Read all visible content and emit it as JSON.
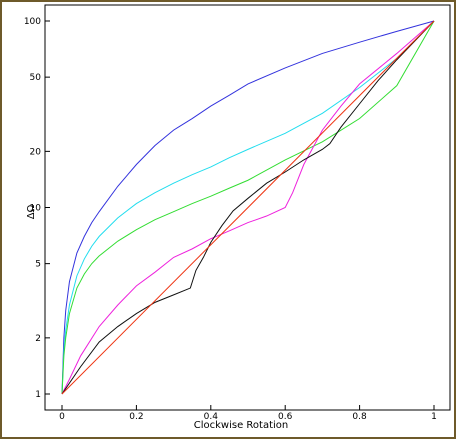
{
  "chart_data": {
    "type": "line",
    "title": "",
    "xlabel": "Clockwise Rotation",
    "ylabel": "ΔΩ",
    "y_scale": "log",
    "xlim": [
      0,
      1
    ],
    "ylim": [
      1,
      100
    ],
    "x_ticks": [
      "0",
      "0.2",
      "0.4",
      "0.6",
      "0.8",
      "1"
    ],
    "x_tick_values": [
      0,
      0.2,
      0.4,
      0.6,
      0.8,
      1
    ],
    "y_ticks": [
      "1",
      "2",
      "5",
      "10",
      "20",
      "50",
      "100"
    ],
    "y_tick_values": [
      1,
      2,
      5,
      10,
      20,
      50,
      100
    ],
    "grid": false,
    "legend": "none",
    "series": [
      {
        "color": "#3333dd",
        "points": [
          [
            0,
            1
          ],
          [
            0.005,
            2.0
          ],
          [
            0.01,
            2.8
          ],
          [
            0.02,
            4.0
          ],
          [
            0.04,
            5.7
          ],
          [
            0.06,
            7.0
          ],
          [
            0.08,
            8.3
          ],
          [
            0.1,
            9.5
          ],
          [
            0.15,
            13
          ],
          [
            0.2,
            17
          ],
          [
            0.25,
            21.5
          ],
          [
            0.3,
            26
          ],
          [
            0.35,
            30
          ],
          [
            0.4,
            35
          ],
          [
            0.45,
            40
          ],
          [
            0.5,
            46
          ],
          [
            0.6,
            56
          ],
          [
            0.7,
            67
          ],
          [
            0.8,
            77
          ],
          [
            0.9,
            88
          ],
          [
            1.0,
            100
          ]
        ]
      },
      {
        "color": "#22ddee",
        "points": [
          [
            0,
            1
          ],
          [
            0.005,
            1.7
          ],
          [
            0.01,
            2.2
          ],
          [
            0.02,
            3.0
          ],
          [
            0.04,
            4.3
          ],
          [
            0.06,
            5.3
          ],
          [
            0.08,
            6.2
          ],
          [
            0.1,
            7.0
          ],
          [
            0.15,
            8.8
          ],
          [
            0.2,
            10.5
          ],
          [
            0.25,
            12
          ],
          [
            0.3,
            13.5
          ],
          [
            0.35,
            15
          ],
          [
            0.4,
            16.5
          ],
          [
            0.45,
            18.5
          ],
          [
            0.5,
            20.5
          ],
          [
            0.6,
            25
          ],
          [
            0.7,
            32
          ],
          [
            0.8,
            44
          ],
          [
            0.9,
            63
          ],
          [
            1.0,
            100
          ]
        ]
      },
      {
        "color": "#33dd33",
        "points": [
          [
            0,
            1
          ],
          [
            0.005,
            1.6
          ],
          [
            0.01,
            2.0
          ],
          [
            0.02,
            2.7
          ],
          [
            0.04,
            3.7
          ],
          [
            0.06,
            4.4
          ],
          [
            0.08,
            5.0
          ],
          [
            0.1,
            5.5
          ],
          [
            0.15,
            6.6
          ],
          [
            0.2,
            7.6
          ],
          [
            0.25,
            8.6
          ],
          [
            0.3,
            9.5
          ],
          [
            0.35,
            10.5
          ],
          [
            0.4,
            11.5
          ],
          [
            0.45,
            12.7
          ],
          [
            0.5,
            14
          ],
          [
            0.6,
            18
          ],
          [
            0.7,
            22.5
          ],
          [
            0.8,
            30
          ],
          [
            0.9,
            45
          ],
          [
            1.0,
            100
          ]
        ]
      },
      {
        "color": "#ee22dd",
        "points": [
          [
            0,
            1
          ],
          [
            0.02,
            1.2
          ],
          [
            0.05,
            1.6
          ],
          [
            0.1,
            2.3
          ],
          [
            0.15,
            3.0
          ],
          [
            0.2,
            3.8
          ],
          [
            0.25,
            4.5
          ],
          [
            0.3,
            5.4
          ],
          [
            0.35,
            6.0
          ],
          [
            0.4,
            6.8
          ],
          [
            0.45,
            7.5
          ],
          [
            0.5,
            8.3
          ],
          [
            0.55,
            9.0
          ],
          [
            0.6,
            10
          ],
          [
            0.62,
            12
          ],
          [
            0.65,
            17
          ],
          [
            0.7,
            26
          ],
          [
            0.75,
            35
          ],
          [
            0.8,
            46
          ],
          [
            0.9,
            67
          ],
          [
            1.0,
            100
          ]
        ]
      },
      {
        "color": "#111111",
        "points": [
          [
            0,
            1
          ],
          [
            0.05,
            1.4
          ],
          [
            0.1,
            1.9
          ],
          [
            0.15,
            2.3
          ],
          [
            0.2,
            2.7
          ],
          [
            0.25,
            3.1
          ],
          [
            0.3,
            3.4
          ],
          [
            0.345,
            3.7
          ],
          [
            0.36,
            4.6
          ],
          [
            0.38,
            5.4
          ],
          [
            0.4,
            6.5
          ],
          [
            0.43,
            8.0
          ],
          [
            0.46,
            9.6
          ],
          [
            0.5,
            11.2
          ],
          [
            0.55,
            13.5
          ],
          [
            0.6,
            15.5
          ],
          [
            0.65,
            18
          ],
          [
            0.7,
            20.5
          ],
          [
            0.72,
            22
          ],
          [
            0.75,
            27
          ],
          [
            0.8,
            36
          ],
          [
            0.85,
            48
          ],
          [
            0.9,
            62
          ],
          [
            1.0,
            100
          ]
        ]
      },
      {
        "color": "#ee3311",
        "points": [
          [
            0,
            1
          ],
          [
            1,
            100
          ]
        ]
      }
    ]
  }
}
